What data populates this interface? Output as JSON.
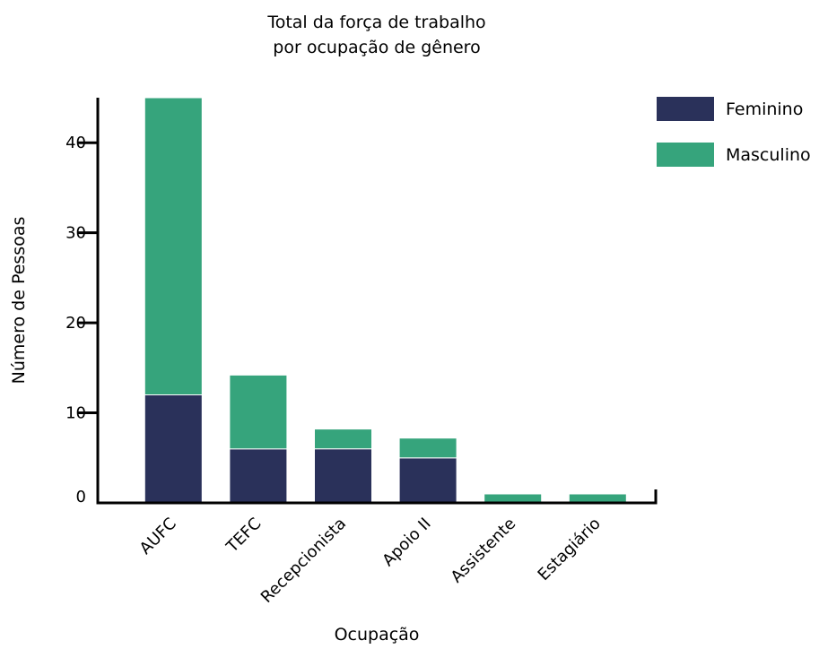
{
  "chart_data": {
    "type": "bar",
    "stacked": true,
    "title_lines": [
      "Total da força de trabalho",
      "por ocupação de gênero"
    ],
    "xlabel": "Ocupação",
    "ylabel": "Número de Pessoas",
    "categories": [
      "AUFC",
      "TEFC",
      "Recepcionista",
      "Apoio II",
      "Assistente",
      "Estagiário"
    ],
    "series": [
      {
        "name": "Feminino",
        "color": "#2a315a",
        "values": [
          12,
          6,
          6,
          5,
          0,
          0
        ]
      },
      {
        "name": "Masculino",
        "color": "#36a47c",
        "values": [
          33,
          8.2,
          2.2,
          2.2,
          1,
          1
        ]
      }
    ],
    "ylim": [
      0,
      45
    ],
    "yticks": [
      0,
      10,
      20,
      30,
      40
    ],
    "grid": false,
    "legend_position": "top-right"
  }
}
